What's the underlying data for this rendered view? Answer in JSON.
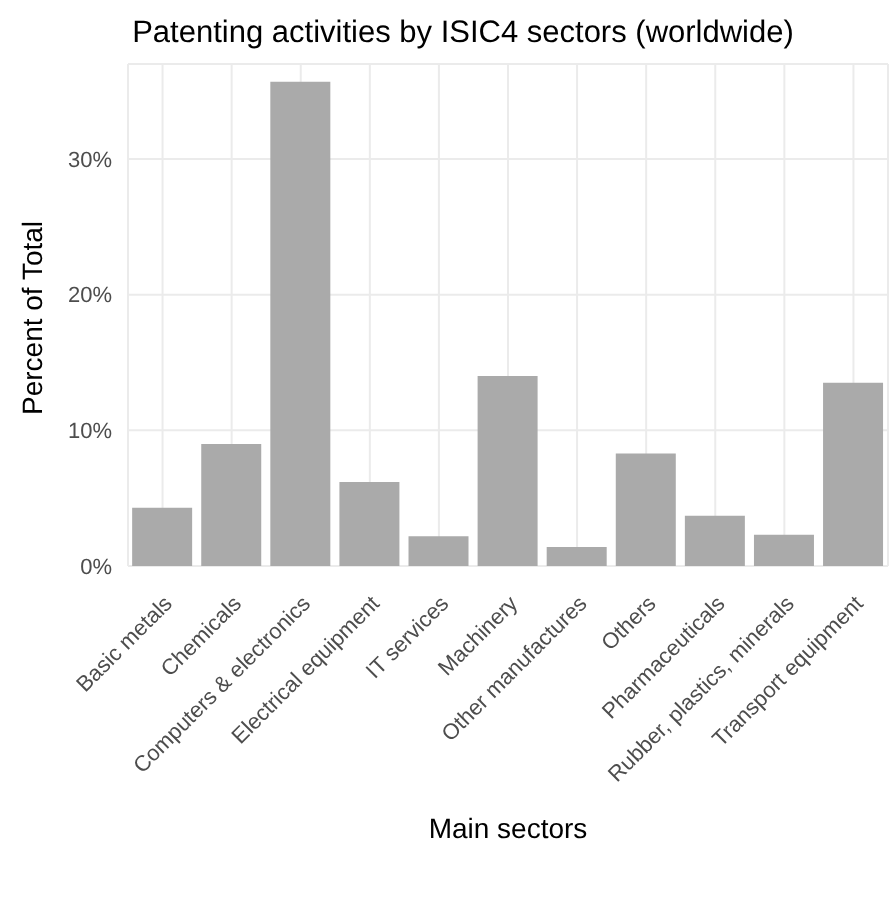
{
  "chart_data": {
    "type": "bar",
    "title": "Patenting activities by ISIC4 sectors (worldwide)",
    "xlabel": "Main sectors",
    "ylabel": "Percent of Total",
    "categories": [
      "Basic metals",
      "Chemicals",
      "Computers & electronics",
      "Electrical equipment",
      "IT services",
      "Machinery",
      "Other manufactures",
      "Others",
      "Pharmaceuticals",
      "Rubber, plastics, minerals",
      "Transport equipment"
    ],
    "values": [
      4.3,
      9.0,
      35.7,
      6.2,
      2.2,
      14.0,
      1.4,
      8.3,
      3.7,
      2.3,
      13.5
    ],
    "color": "#aaaaaa",
    "ylim": [
      0,
      37
    ],
    "yticks": [
      {
        "value": 0,
        "label": "0%"
      },
      {
        "value": 10,
        "label": "10%"
      },
      {
        "value": 20,
        "label": "20%"
      },
      {
        "value": 30,
        "label": "30%"
      }
    ],
    "grid": true
  }
}
